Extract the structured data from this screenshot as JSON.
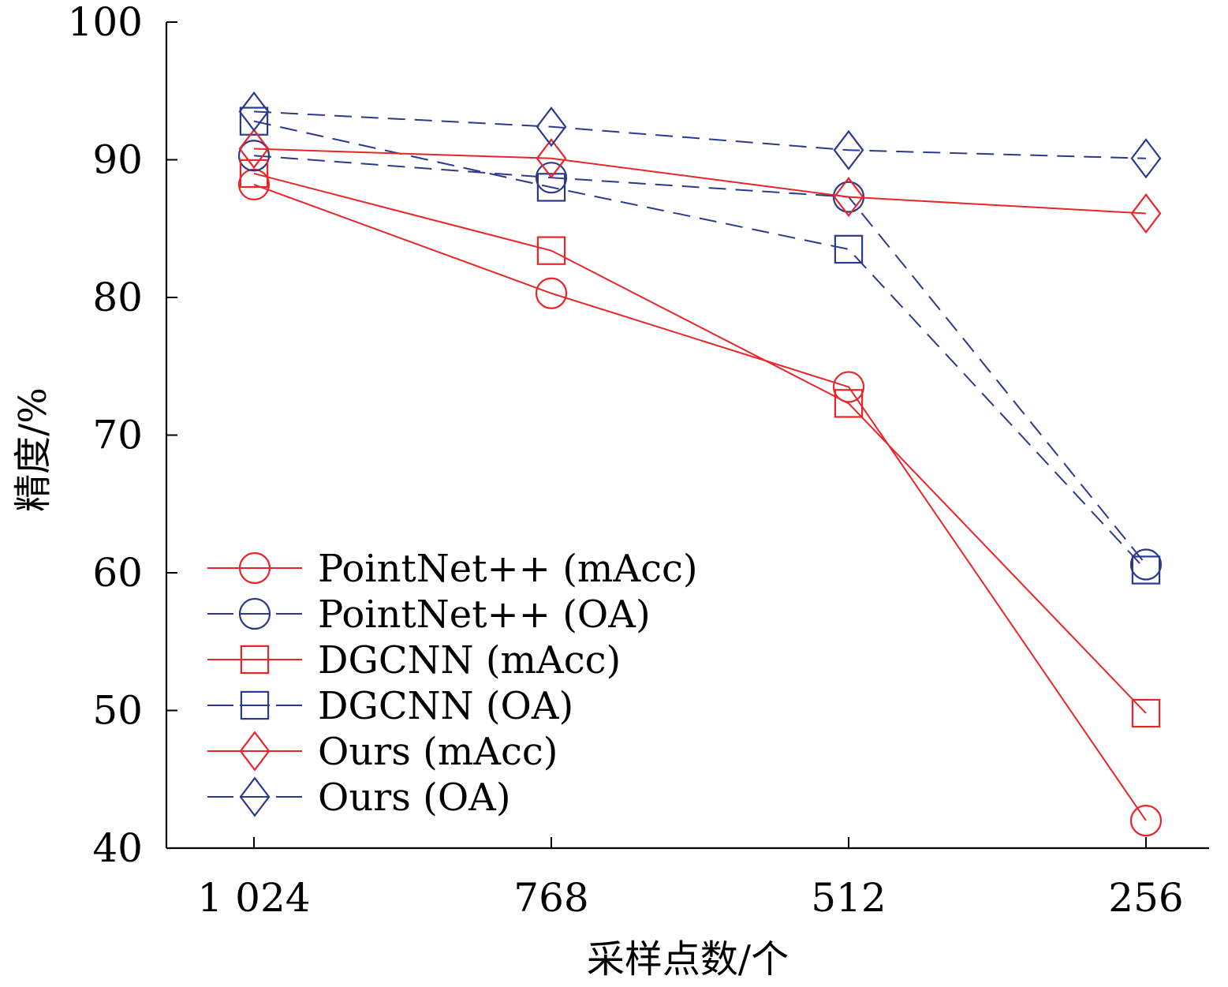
{
  "chart_data": {
    "type": "line",
    "xlabel": "采样点数/个",
    "ylabel": "精度/%",
    "categories": [
      "1 024",
      "768",
      "512",
      "256"
    ],
    "ylim": [
      40,
      100
    ],
    "yticks": [
      40,
      50,
      60,
      70,
      80,
      90,
      100
    ],
    "grid": false,
    "legend_position": "bottom-left",
    "series": [
      {
        "name": "PointNet++ (mAcc)",
        "values": [
          88.2,
          80.3,
          73.5,
          42.0
        ],
        "color": "#e8262a",
        "dashed": false,
        "marker": "circle"
      },
      {
        "name": "PointNet++ (OA)",
        "values": [
          90.3,
          88.7,
          87.3,
          60.6
        ],
        "color": "#2b3a8c",
        "dashed": true,
        "marker": "circle"
      },
      {
        "name": "DGCNN (mAcc)",
        "values": [
          89.0,
          83.4,
          72.3,
          49.8
        ],
        "color": "#e8262a",
        "dashed": false,
        "marker": "square"
      },
      {
        "name": "DGCNN (OA)",
        "values": [
          92.8,
          88.0,
          83.5,
          60.2
        ],
        "color": "#2b3a8c",
        "dashed": true,
        "marker": "square"
      },
      {
        "name": "Ours (mAcc)",
        "values": [
          90.8,
          90.1,
          87.3,
          86.1
        ],
        "color": "#e8262a",
        "dashed": false,
        "marker": "diamond"
      },
      {
        "name": "Ours (OA)",
        "values": [
          93.5,
          92.4,
          90.7,
          90.1
        ],
        "color": "#2b3a8c",
        "dashed": true,
        "marker": "diamond"
      }
    ]
  }
}
